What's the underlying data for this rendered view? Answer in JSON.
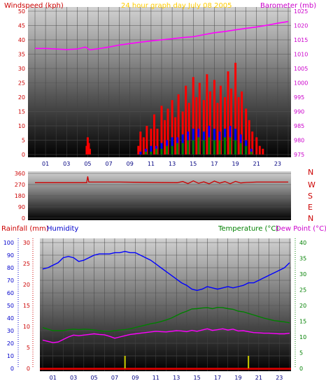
{
  "chart_data": [
    {
      "type": "line",
      "title": "24 hour graph day    July 08 2005",
      "ylabel": "Windspeed (kph)",
      "y2label": "Barometer (mb)",
      "xticks": [
        "01",
        "03",
        "05",
        "07",
        "09",
        "11",
        "13",
        "15",
        "17",
        "19",
        "21",
        "23"
      ],
      "yticks": [
        "0",
        "5",
        "10",
        "15",
        "20",
        "25",
        "30",
        "35",
        "40",
        "45",
        "50"
      ],
      "y2ticks": [
        "975",
        "980",
        "985",
        "990",
        "995",
        "1000",
        "1005",
        "1010",
        "1015",
        "1020",
        "1025"
      ],
      "ylim": [
        0,
        50
      ],
      "y2lim": [
        975,
        1025
      ],
      "grid": true,
      "colors": {
        "wind": "#ff0000",
        "gust": "#0000ff",
        "avg": "#008000",
        "baro": "#ff00ff",
        "axis_left": "#cc0000",
        "axis_right": "#cc00cc",
        "title": "#ffcc00"
      },
      "series": [
        {
          "key": "barometer",
          "x": [
            0,
            1,
            2,
            3,
            4,
            4.8,
            5.2,
            6,
            7,
            8,
            9,
            10,
            11,
            12,
            13,
            14,
            15,
            16,
            17,
            18,
            19,
            20,
            21,
            22,
            23,
            24
          ],
          "values": [
            1012,
            1012,
            1011.8,
            1011.6,
            1011.8,
            1012.5,
            1011.5,
            1011.9,
            1012.5,
            1013.2,
            1013.7,
            1014.2,
            1014.6,
            1015.0,
            1015.4,
            1015.8,
            1016.1,
            1016.8,
            1017.5,
            1017.9,
            1018.5,
            1019.0,
            1019.5,
            1020.1,
            1020.8,
            1021.4
          ]
        },
        {
          "key": "windspeed",
          "x": [
            4.9,
            5.0,
            5.1,
            5.2,
            9.8,
            10.0,
            10.3,
            10.6,
            11.0,
            11.3,
            11.6,
            12.0,
            12.3,
            12.6,
            13.0,
            13.3,
            13.6,
            14.0,
            14.3,
            14.6,
            15.0,
            15.3,
            15.6,
            16.0,
            16.3,
            16.6,
            17.0,
            17.3,
            17.6,
            18.0,
            18.3,
            18.6,
            19.0,
            19.3,
            19.6,
            20.0,
            20.3,
            20.6,
            21.0,
            21.3,
            21.6
          ],
          "values": [
            3,
            6,
            4,
            2,
            3,
            8,
            6,
            10,
            9,
            14,
            9,
            17,
            12,
            16,
            19,
            13,
            21,
            15,
            24,
            18,
            27,
            20,
            25,
            19,
            28,
            22,
            26,
            18,
            24,
            20,
            29,
            23,
            32,
            20,
            22,
            16,
            12,
            8,
            6,
            3,
            2
          ]
        },
        {
          "key": "windspeed-blue",
          "x": [
            10.0,
            10.5,
            11.0,
            11.5,
            12.0,
            12.5,
            13.0,
            13.5,
            14.0,
            14.5,
            15.0,
            15.5,
            16.0,
            16.5,
            17.0,
            17.5,
            18.0,
            18.5,
            19.0,
            19.5,
            20.0,
            20.5
          ],
          "values": [
            1,
            2,
            3,
            3,
            4,
            5,
            6,
            6,
            7,
            8,
            9,
            9,
            8,
            10,
            9,
            8,
            9,
            10,
            9,
            7,
            5,
            2
          ]
        },
        {
          "key": "windspeed-green",
          "x": [
            10.0,
            10.5,
            11.0,
            11.5,
            12.0,
            12.5,
            13.0,
            13.5,
            14.0,
            14.5,
            15.0,
            15.5,
            16.0,
            16.5,
            17.0,
            17.5,
            18.0,
            18.5,
            19.0,
            19.5,
            20.0,
            20.5
          ],
          "values": [
            0,
            1,
            1,
            2,
            2,
            3,
            3,
            4,
            4,
            5,
            5,
            6,
            5,
            6,
            5,
            5,
            6,
            6,
            5,
            4,
            3,
            1
          ]
        }
      ]
    },
    {
      "type": "line",
      "title": "",
      "yticks": [
        "0",
        "90",
        "180",
        "270",
        "360"
      ],
      "ylim": [
        0,
        360
      ],
      "compass": [
        "N",
        "W",
        "S",
        "E",
        "N"
      ],
      "grid": true,
      "colors": {
        "dir": "#cc0000",
        "axis": "#cc0000"
      },
      "series": [
        {
          "key": "wind-direction",
          "x": [
            0,
            2,
            4,
            4.9,
            5.0,
            5.1,
            6,
            8,
            10,
            12,
            13.5,
            14.0,
            14.5,
            15.0,
            15.5,
            16.0,
            16.5,
            17.0,
            17.5,
            18.0,
            18.5,
            19.0,
            19.5,
            20.0,
            21,
            22,
            24
          ],
          "values": [
            285,
            285,
            285,
            285,
            335,
            290,
            290,
            290,
            288,
            286,
            285,
            295,
            278,
            300,
            280,
            292,
            276,
            298,
            282,
            294,
            277,
            296,
            283,
            287,
            290,
            290,
            290
          ]
        }
      ]
    },
    {
      "type": "line",
      "title": "",
      "ylabel": "Rainfall (mm)",
      "ylabel2": "Humidity",
      "y2label": "Temperature (°C)",
      "y2label2": "Dew Point (°C)",
      "xticks": [
        "01",
        "03",
        "05",
        "07",
        "09",
        "11",
        "13",
        "15",
        "17",
        "19",
        "21",
        "23"
      ],
      "yticks_humidity": [
        "0",
        "10",
        "20",
        "30",
        "40",
        "50",
        "60",
        "70",
        "80",
        "90",
        "100"
      ],
      "yticks_rain": [
        "0",
        "5",
        "10",
        "15",
        "20",
        "25",
        "30"
      ],
      "y2ticks": [
        "0",
        "5",
        "10",
        "15",
        "20",
        "25",
        "30",
        "35",
        "40"
      ],
      "ylim_humidity": [
        0,
        100
      ],
      "ylim_rain": [
        0,
        30
      ],
      "y2lim": [
        0,
        40
      ],
      "grid": true,
      "colors": {
        "humidity": "#0000ff",
        "temperature": "#008000",
        "dewpoint": "#ff00ff",
        "rain": "#cccc00",
        "rain_axis": "#cc0000",
        "humidity_axis": "#0000cc",
        "temp_axis": "#008000"
      },
      "series": [
        {
          "key": "humidity",
          "x": [
            0,
            0.5,
            1,
            1.5,
            2,
            2.5,
            3,
            3.5,
            4,
            4.5,
            5,
            5.5,
            6,
            6.5,
            7,
            7.5,
            8,
            8.5,
            9,
            9.5,
            10,
            10.5,
            11,
            11.5,
            12,
            12.5,
            13,
            13.5,
            14,
            14.5,
            15,
            15.5,
            16,
            16.5,
            17,
            17.5,
            18,
            18.5,
            19,
            19.5,
            20,
            20.5,
            21,
            21.5,
            22,
            22.5,
            23,
            23.5,
            24
          ],
          "values": [
            79,
            80,
            82,
            84,
            88,
            89,
            88,
            85,
            86,
            88,
            90,
            91,
            91,
            91,
            92,
            92,
            93,
            92,
            92,
            90,
            88,
            86,
            83,
            80,
            77,
            74,
            71,
            68,
            66,
            63,
            62,
            63,
            65,
            64,
            63,
            64,
            65,
            64,
            65,
            66,
            68,
            68,
            70,
            72,
            74,
            76,
            78,
            80,
            84
          ]
        },
        {
          "key": "temperature",
          "x": [
            0,
            0.5,
            1,
            1.5,
            2,
            2.5,
            3,
            3.5,
            4,
            4.5,
            5,
            5.5,
            6,
            6.5,
            7,
            7.5,
            8,
            8.5,
            9,
            9.5,
            10,
            10.5,
            11,
            11.5,
            12,
            12.5,
            13,
            13.5,
            14,
            14.5,
            15,
            15.5,
            16,
            16.5,
            17,
            17.5,
            18,
            18.5,
            19,
            19.5,
            20,
            20.5,
            21,
            21.5,
            22,
            22.5,
            23,
            23.5,
            24
          ],
          "values": [
            13,
            12.5,
            12,
            12,
            12,
            12.3,
            12.5,
            12.3,
            12.5,
            12.4,
            12.2,
            12.0,
            11.8,
            11.8,
            12.0,
            12.2,
            12.3,
            12.6,
            13.0,
            13.4,
            13.8,
            14.2,
            14.5,
            14.9,
            15.4,
            16.0,
            16.8,
            17.6,
            18.2,
            18.9,
            19.0,
            19.2,
            19.3,
            19.0,
            19.4,
            19.3,
            19.0,
            18.8,
            18.2,
            18.0,
            17.5,
            17.0,
            16.5,
            16.0,
            15.6,
            15.2,
            15.0,
            14.8,
            14.5
          ]
        },
        {
          "key": "dew-point",
          "x": [
            0,
            0.5,
            1,
            1.5,
            2,
            2.5,
            3,
            3.5,
            4,
            4.5,
            5,
            5.5,
            6,
            6.5,
            7,
            7.5,
            8,
            8.5,
            9,
            9.5,
            10,
            10.5,
            11,
            11.5,
            12,
            12.5,
            13,
            13.5,
            14,
            14.5,
            15,
            15.5,
            16,
            16.5,
            17,
            17.5,
            18,
            18.5,
            19,
            19.5,
            20,
            20.5,
            21,
            21.5,
            22,
            22.5,
            23,
            23.5,
            24
          ],
          "values": [
            9,
            8.6,
            8.2,
            8.4,
            9.2,
            10.0,
            10.6,
            10.4,
            10.6,
            10.8,
            11.0,
            10.8,
            10.7,
            10.2,
            9.6,
            10.0,
            10.4,
            10.8,
            11.0,
            11.2,
            11.4,
            11.6,
            11.8,
            11.7,
            11.6,
            11.8,
            12.0,
            11.9,
            11.7,
            12.1,
            11.8,
            12.2,
            12.6,
            12.1,
            12.3,
            12.6,
            12.2,
            12.5,
            11.9,
            12.0,
            11.7,
            11.4,
            11.3,
            11.2,
            11.2,
            11.1,
            11.0,
            11.0,
            11.2
          ]
        },
        {
          "key": "rainfall",
          "x": [
            8.0,
            20.0
          ],
          "values": [
            3,
            3
          ]
        }
      ]
    }
  ]
}
